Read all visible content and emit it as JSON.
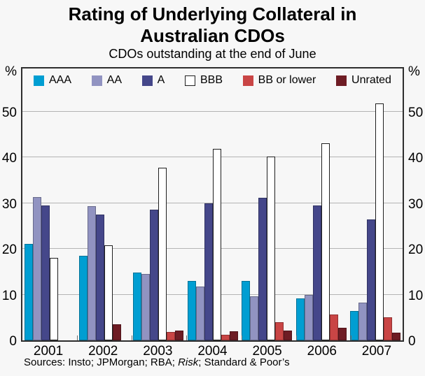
{
  "header": {
    "title_line1": "Rating of Underlying Collateral in",
    "title_line2": "Australian CDOs",
    "subtitle": "CDOs outstanding at the end of June"
  },
  "footer": {
    "prefix": "Sources: Insto; JPMorgan; RBA; ",
    "italic": "Risk",
    "suffix": "; Standard & Poor’s"
  },
  "chart_data": {
    "type": "bar",
    "title": "Rating of Underlying Collateral in Australian CDOs",
    "subtitle": "CDOs outstanding at the end of June",
    "unit": "%",
    "categories": [
      "2001",
      "2002",
      "2003",
      "2004",
      "2005",
      "2006",
      "2007"
    ],
    "series": [
      {
        "name": "AAA",
        "color": "#009ed2",
        "values": [
          21.0,
          18.4,
          14.8,
          13.0,
          13.0,
          9.1,
          6.4
        ]
      },
      {
        "name": "AA",
        "color": "#9193c1",
        "values": [
          31.3,
          29.3,
          14.5,
          11.7,
          9.6,
          10.0,
          8.3
        ]
      },
      {
        "name": "A",
        "color": "#45478a",
        "values": [
          29.4,
          27.5,
          28.6,
          30.0,
          31.1,
          29.4,
          26.4
        ]
      },
      {
        "name": "BBB",
        "color": "#ffffff",
        "border": "#1f1f1f",
        "values": [
          18.0,
          20.8,
          37.7,
          41.8,
          40.2,
          43.1,
          51.8
        ]
      },
      {
        "name": "BB or lower",
        "color": "#c94545",
        "values": [
          0,
          0,
          1.9,
          1.3,
          3.9,
          5.6,
          5.1
        ]
      },
      {
        "name": "Unrated",
        "color": "#6e1c24",
        "values": [
          0,
          3.5,
          2.2,
          2.0,
          2.1,
          2.7,
          1.7
        ]
      }
    ],
    "ylim": [
      0,
      60
    ],
    "yticks": [
      0,
      10,
      20,
      30,
      40,
      50
    ],
    "grid": true,
    "grid_color": "#b4b4b4",
    "axis_color": "#2e2e2e",
    "legend_position": "top-inside"
  }
}
